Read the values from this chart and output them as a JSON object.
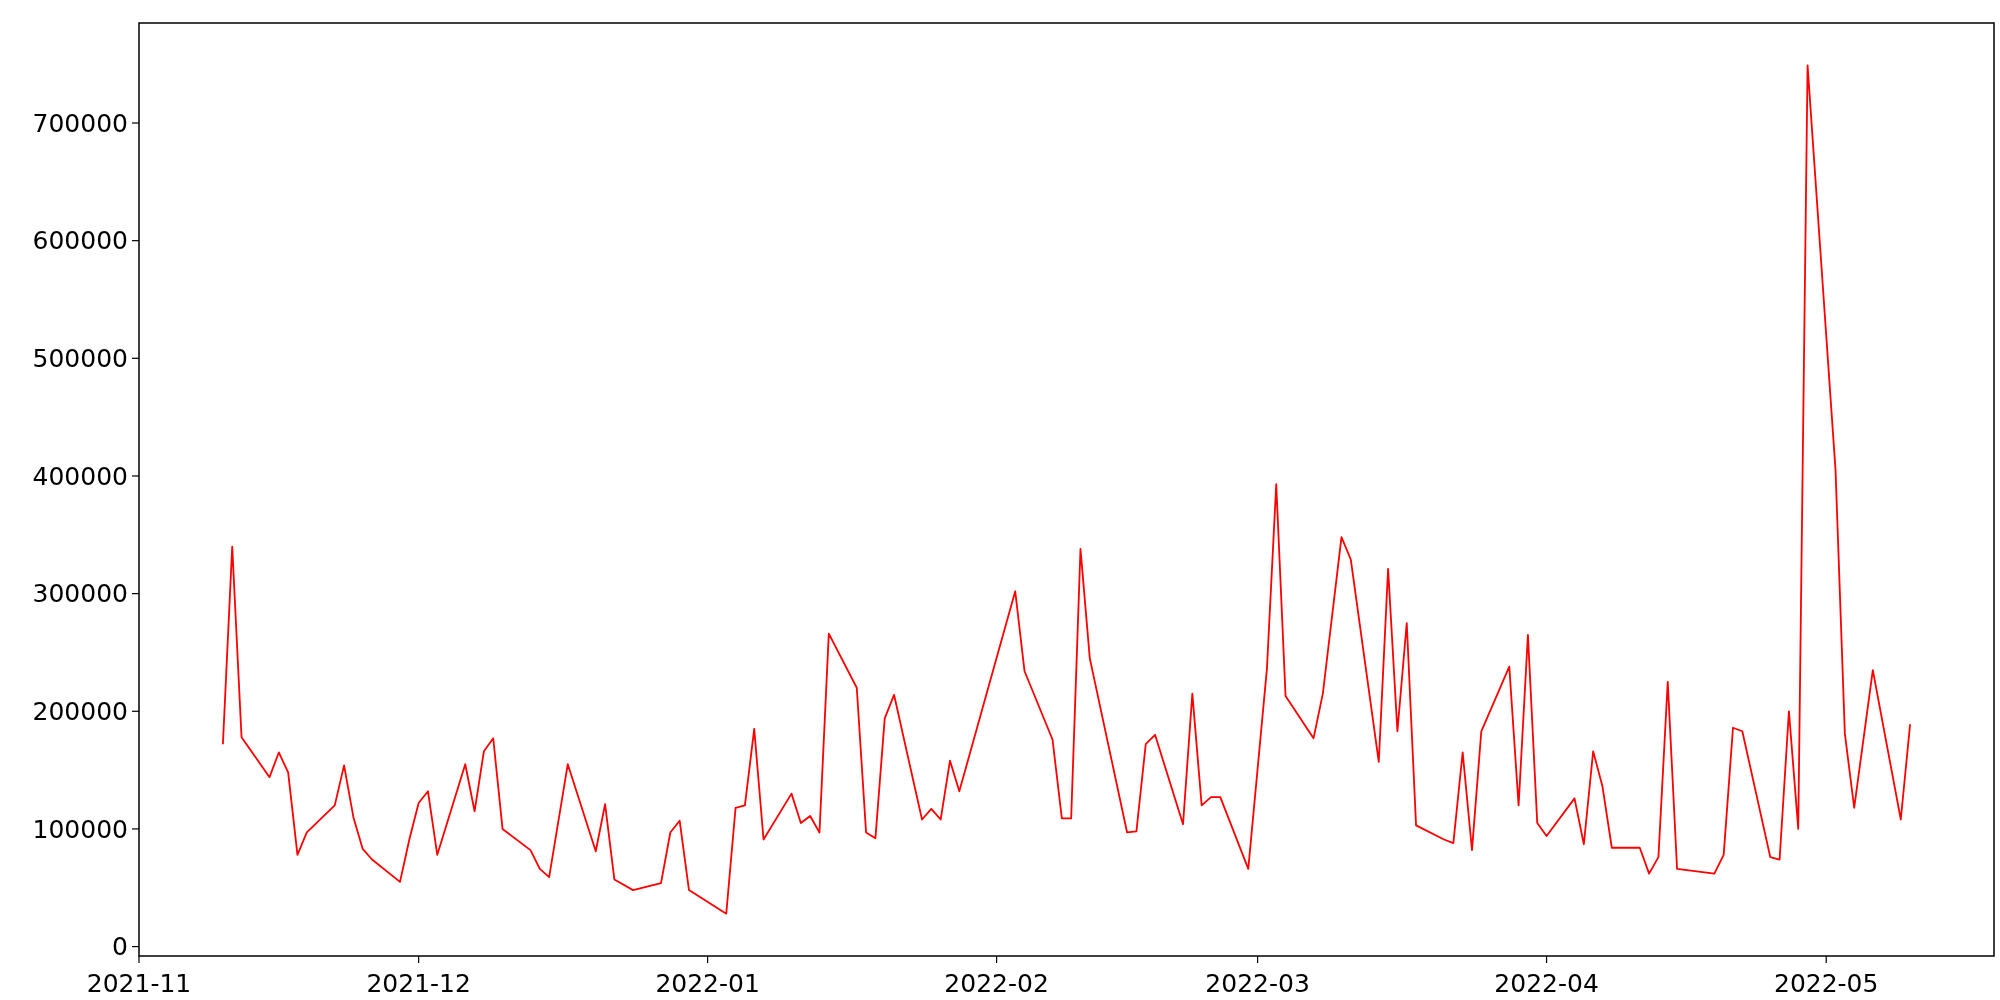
{
  "chart_data": {
    "type": "line",
    "x": [
      "2021-11-10",
      "2021-11-11",
      "2021-11-12",
      "2021-11-15",
      "2021-11-16",
      "2021-11-17",
      "2021-11-18",
      "2021-11-19",
      "2021-11-22",
      "2021-11-23",
      "2021-11-24",
      "2021-11-25",
      "2021-11-26",
      "2021-11-29",
      "2021-11-30",
      "2021-12-01",
      "2021-12-02",
      "2021-12-03",
      "2021-12-06",
      "2021-12-07",
      "2021-12-08",
      "2021-12-09",
      "2021-12-10",
      "2021-12-13",
      "2021-12-14",
      "2021-12-15",
      "2021-12-17",
      "2021-12-20",
      "2021-12-21",
      "2021-12-22",
      "2021-12-24",
      "2021-12-27",
      "2021-12-28",
      "2021-12-29",
      "2021-12-30",
      "2022-01-03",
      "2022-01-04",
      "2022-01-05",
      "2022-01-06",
      "2022-01-07",
      "2022-01-10",
      "2022-01-11",
      "2022-01-12",
      "2022-01-13",
      "2022-01-14",
      "2022-01-17",
      "2022-01-18",
      "2022-01-19",
      "2022-01-20",
      "2022-01-21",
      "2022-01-24",
      "2022-01-25",
      "2022-01-26",
      "2022-01-27",
      "2022-01-28",
      "2022-02-03",
      "2022-02-04",
      "2022-02-07",
      "2022-02-08",
      "2022-02-09",
      "2022-02-10",
      "2022-02-11",
      "2022-02-15",
      "2022-02-16",
      "2022-02-17",
      "2022-02-18",
      "2022-02-21",
      "2022-02-22",
      "2022-02-23",
      "2022-02-24",
      "2022-02-25",
      "2022-02-28",
      "2022-03-02",
      "2022-03-03",
      "2022-03-04",
      "2022-03-07",
      "2022-03-08",
      "2022-03-10",
      "2022-03-11",
      "2022-03-14",
      "2022-03-15",
      "2022-03-16",
      "2022-03-17",
      "2022-03-18",
      "2022-03-21",
      "2022-03-22",
      "2022-03-23",
      "2022-03-24",
      "2022-03-25",
      "2022-03-28",
      "2022-03-29",
      "2022-03-30",
      "2022-03-31",
      "2022-04-01",
      "2022-04-04",
      "2022-04-05",
      "2022-04-06",
      "2022-04-07",
      "2022-04-08",
      "2022-04-11",
      "2022-04-12",
      "2022-04-13",
      "2022-04-14",
      "2022-04-15",
      "2022-04-19",
      "2022-04-20",
      "2022-04-21",
      "2022-04-22",
      "2022-04-25",
      "2022-04-26",
      "2022-04-27",
      "2022-04-28",
      "2022-04-29",
      "2022-05-02",
      "2022-05-03",
      "2022-05-04",
      "2022-05-06",
      "2022-05-09",
      "2022-05-10"
    ],
    "series": [
      {
        "color": "#ff0000",
        "values": [
          172000,
          340000,
          178000,
          144000,
          165000,
          148000,
          78000,
          97000,
          120000,
          154000,
          110000,
          83000,
          74000,
          55000,
          91000,
          122000,
          132000,
          78000,
          155000,
          115000,
          166000,
          177000,
          100000,
          82000,
          66000,
          59000,
          155000,
          81000,
          121000,
          57000,
          48000,
          54000,
          97000,
          107000,
          48000,
          28000,
          118000,
          120000,
          185000,
          91000,
          130000,
          105000,
          111000,
          97000,
          266000,
          220000,
          97000,
          92000,
          194000,
          214000,
          108000,
          117000,
          108000,
          158000,
          132000,
          302000,
          234000,
          176000,
          109000,
          109000,
          338000,
          245000,
          97000,
          98000,
          172000,
          180000,
          104000,
          215000,
          120000,
          127000,
          127000,
          66000,
          236000,
          393000,
          213000,
          177000,
          215000,
          348000,
          329000,
          157000,
          321000,
          183000,
          275000,
          103000,
          91000,
          88000,
          165000,
          82000,
          183000,
          238000,
          120000,
          265000,
          105000,
          94000,
          126000,
          87000,
          166000,
          136000,
          84000,
          84000,
          62000,
          76000,
          225000,
          66000,
          62000,
          78000,
          186000,
          183000,
          76000,
          74000,
          200000,
          100000,
          749000,
          405000,
          181000,
          118000,
          235000,
          108000,
          189000
        ]
      }
    ],
    "xlim": [
      "2021-11-01",
      "2022-05-19"
    ],
    "xticks": [
      {
        "value": "2021-11-01",
        "label": "2021-11"
      },
      {
        "value": "2021-12-01",
        "label": "2021-12"
      },
      {
        "value": "2022-01-01",
        "label": "2022-01"
      },
      {
        "value": "2022-02-01",
        "label": "2022-02"
      },
      {
        "value": "2022-03-01",
        "label": "2022-03"
      },
      {
        "value": "2022-04-01",
        "label": "2022-04"
      },
      {
        "value": "2022-05-01",
        "label": "2022-05"
      }
    ],
    "ylim": [
      -8000,
      785000
    ],
    "yticks": [
      0,
      100000,
      200000,
      300000,
      400000,
      500000,
      600000,
      700000
    ],
    "grid": false,
    "marker": "none",
    "line_style": "solid"
  }
}
